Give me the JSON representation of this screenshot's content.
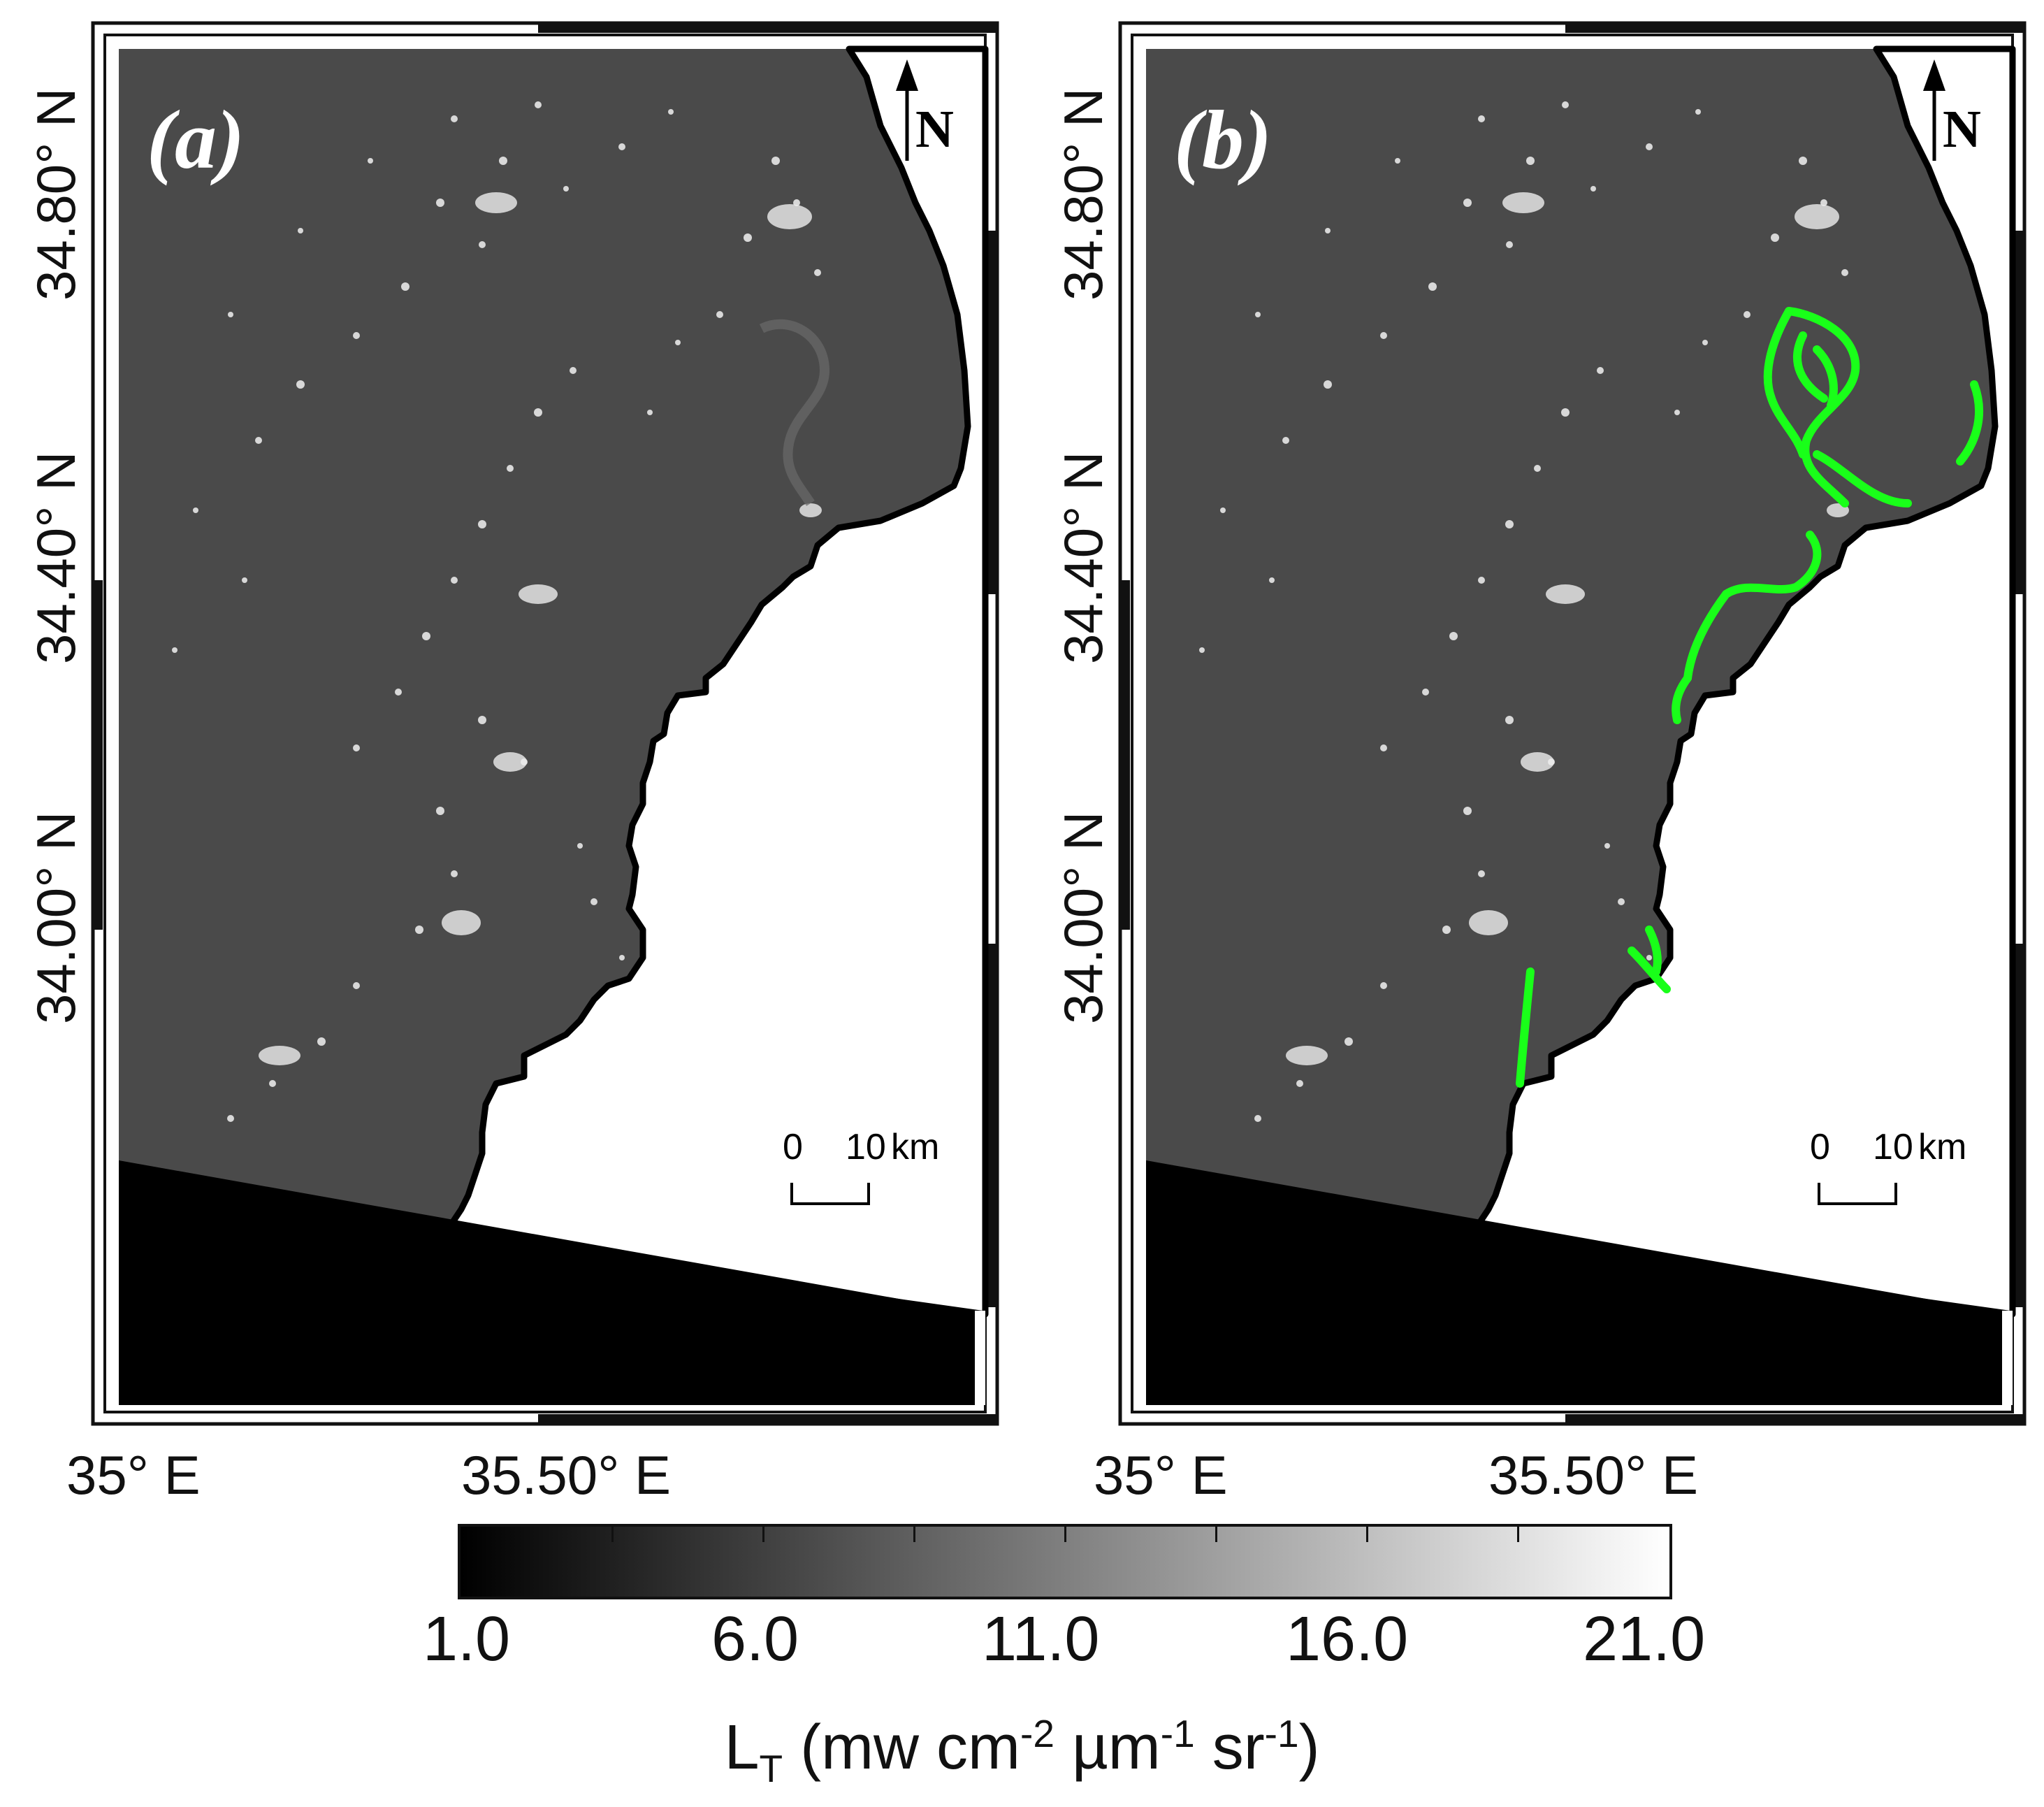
{
  "panels": [
    {
      "id": "a",
      "label": "(a)",
      "plume_overlay": false
    },
    {
      "id": "b",
      "label": "(b)",
      "plume_overlay": true
    }
  ],
  "north_arrow_label": "N",
  "scale_bar": {
    "start_label": "0",
    "end_label": "10",
    "unit": "km"
  },
  "latitude_labels": [
    "34.80° N",
    "34.40° N",
    "34.00° N"
  ],
  "longitude_labels": [
    "35° E",
    "35.50° E"
  ],
  "colorbar": {
    "tick_labels": [
      "1.0",
      "6.0",
      "11.0",
      "16.0",
      "21.0"
    ],
    "min": 1.0,
    "max": 21.0,
    "title_main": "L",
    "title_sub": "T",
    "title_units_1": " (mw cm",
    "title_exp_1": "-2",
    "title_units_2": " µm",
    "title_exp_2": "-1",
    "title_units_3": " sr",
    "title_exp_3": "-1",
    "title_units_4": ")"
  },
  "colors": {
    "sea": "#4a4a4a",
    "land": "#ffffff",
    "nodata": "#000000",
    "plume_highlight": "#19ff19",
    "coast": "#000000"
  }
}
